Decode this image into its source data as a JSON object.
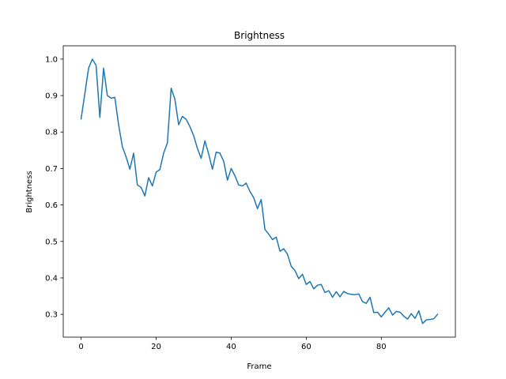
{
  "chart_data": {
    "type": "line",
    "title": "Brightness",
    "xlabel": "Frame",
    "ylabel": "Brightness",
    "xlim": [
      -4.75,
      99.75
    ],
    "ylim": [
      0.2375,
      1.0365
    ],
    "xticks": [
      0,
      20,
      40,
      60,
      80
    ],
    "xtick_labels": [
      "0",
      "20",
      "40",
      "60",
      "80"
    ],
    "yticks": [
      0.3,
      0.4,
      0.5,
      0.6,
      0.7,
      0.8,
      0.9,
      1.0
    ],
    "ytick_labels": [
      "0.3",
      "0.4",
      "0.5",
      "0.6",
      "0.7",
      "0.8",
      "0.9",
      "1.0"
    ],
    "grid": false,
    "line_color": "#1f77b4",
    "series": [
      {
        "x": [
          0,
          1,
          2,
          3,
          4,
          5,
          6,
          7,
          8,
          9,
          10,
          11,
          12,
          13,
          14,
          15,
          16,
          17,
          18,
          19,
          20,
          21,
          22,
          23,
          24,
          25,
          26,
          27,
          28,
          29,
          30,
          31,
          32,
          33,
          34,
          35,
          36,
          37,
          38,
          39,
          40,
          41,
          42,
          43,
          44,
          45,
          46,
          47,
          48,
          49,
          50,
          51,
          52,
          53,
          54,
          55,
          56,
          57,
          58,
          59,
          60,
          61,
          62,
          63,
          64,
          65,
          66,
          67,
          68,
          69,
          70,
          71,
          72,
          73,
          74,
          75,
          76,
          77,
          78,
          79,
          80,
          81,
          82,
          83,
          84,
          85,
          86,
          87,
          88,
          89,
          90,
          91,
          92,
          93,
          94,
          95
        ],
        "values": [
          0.836,
          0.905,
          0.975,
          1.0,
          0.983,
          0.84,
          0.975,
          0.9,
          0.893,
          0.895,
          0.82,
          0.76,
          0.732,
          0.698,
          0.742,
          0.655,
          0.648,
          0.625,
          0.675,
          0.652,
          0.69,
          0.697,
          0.742,
          0.77,
          0.92,
          0.89,
          0.82,
          0.843,
          0.835,
          0.815,
          0.79,
          0.755,
          0.728,
          0.776,
          0.74,
          0.698,
          0.745,
          0.742,
          0.72,
          0.668,
          0.7,
          0.68,
          0.655,
          0.652,
          0.66,
          0.637,
          0.62,
          0.59,
          0.615,
          0.533,
          0.52,
          0.505,
          0.512,
          0.473,
          0.48,
          0.465,
          0.432,
          0.42,
          0.398,
          0.41,
          0.382,
          0.39,
          0.37,
          0.38,
          0.382,
          0.36,
          0.365,
          0.347,
          0.362,
          0.348,
          0.363,
          0.357,
          0.355,
          0.354,
          0.356,
          0.335,
          0.33,
          0.347,
          0.305,
          0.306,
          0.293,
          0.306,
          0.318,
          0.298,
          0.308,
          0.306,
          0.295,
          0.287,
          0.302,
          0.289,
          0.31,
          0.275,
          0.285,
          0.286,
          0.288,
          0.3
        ]
      }
    ]
  }
}
